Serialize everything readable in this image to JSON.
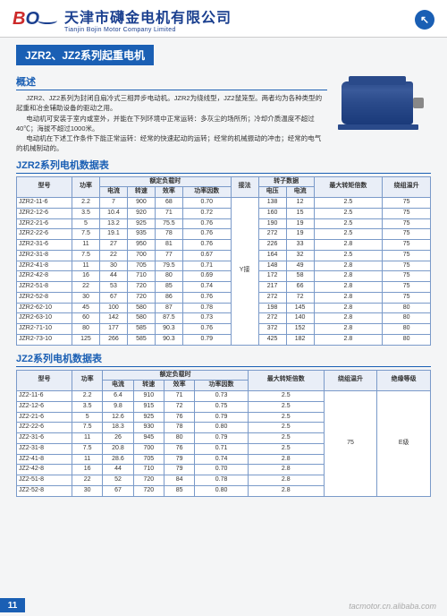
{
  "header": {
    "logo_text": "BO",
    "company_cn": "天津市礴金电机有限公司",
    "company_en": "Tianjin Bojin Motor Company Limited",
    "nav_glyph": "↖"
  },
  "title": "JZR2、JZ2系列起重电机",
  "overview": {
    "heading": "概述",
    "p1": "JZR2、JZ2系列为封闭自扇冷式三相异步电动机。JZR2为绕线型，JZ2鼠笼型。两者均为各种类型的起重和冶金辅助设备的驱动之用。",
    "p2": "电动机可安装于室内或室外，并能在下列环境中正常运转：多灰尘的场所所；冷却介质温度不超过40℃；海拔不超过1000米。",
    "p3": "电动机在下述工作条件下能正常运转：经常的快速起动的运转；经常的机械振动的冲击；经常的电气的机械制动的。"
  },
  "table1": {
    "heading": "JZR2系列电机数据表",
    "head_model": "型号",
    "head_power": "功率",
    "head_rated": "额定负载时",
    "head_rotor": "转子数据",
    "head_maxtorque": "最大转矩倍数",
    "head_temprise": "绕组温升",
    "sub_current": "电流",
    "sub_speed": "转速",
    "sub_eff": "效率",
    "sub_pf": "功率因数",
    "sub_conn": "接法",
    "sub_volt": "电压",
    "sub_curr2": "电流",
    "conn": "Y接",
    "rows": [
      [
        "JZR2-11-6",
        "2.2",
        "7",
        "900",
        "68",
        "0.70",
        "138",
        "12",
        "2.5",
        "75"
      ],
      [
        "JZR2-12-6",
        "3.5",
        "10.4",
        "920",
        "71",
        "0.72",
        "160",
        "15",
        "2.5",
        "75"
      ],
      [
        "JZR2-21-6",
        "5",
        "13.2",
        "925",
        "75.5",
        "0.76",
        "190",
        "19",
        "2.5",
        "75"
      ],
      [
        "JZR2-22-6",
        "7.5",
        "19.1",
        "935",
        "78",
        "0.76",
        "272",
        "19",
        "2.5",
        "75"
      ],
      [
        "JZR2-31-6",
        "11",
        "27",
        "950",
        "81",
        "0.76",
        "226",
        "33",
        "2.8",
        "75"
      ],
      [
        "JZR2-31-8",
        "7.5",
        "22",
        "700",
        "77",
        "0.67",
        "164",
        "32",
        "2.5",
        "75"
      ],
      [
        "JZR2-41-8",
        "11",
        "30",
        "705",
        "79.5",
        "0.71",
        "148",
        "49",
        "2.8",
        "75"
      ],
      [
        "JZR2-42-8",
        "16",
        "44",
        "710",
        "80",
        "0.69",
        "172",
        "58",
        "2.8",
        "75"
      ],
      [
        "JZR2-51-8",
        "22",
        "53",
        "720",
        "85",
        "0.74",
        "217",
        "66",
        "2.8",
        "75"
      ],
      [
        "JZR2-52-8",
        "30",
        "67",
        "720",
        "86",
        "0.76",
        "272",
        "72",
        "2.8",
        "75"
      ],
      [
        "JZR2-62-10",
        "45",
        "100",
        "580",
        "87",
        "0.78",
        "198",
        "145",
        "2.8",
        "80"
      ],
      [
        "JZR2-63-10",
        "60",
        "142",
        "580",
        "87.5",
        "0.73",
        "272",
        "140",
        "2.8",
        "80"
      ],
      [
        "JZR2-71-10",
        "80",
        "177",
        "585",
        "90.3",
        "0.76",
        "372",
        "152",
        "2.8",
        "80"
      ],
      [
        "JZR2-73-10",
        "125",
        "266",
        "585",
        "90.3",
        "0.79",
        "425",
        "182",
        "2.8",
        "80"
      ]
    ]
  },
  "table2": {
    "heading": "JZ2系列电机数据表",
    "head_model": "型号",
    "head_power": "功率",
    "head_rated": "额定负载时",
    "head_maxtorque": "最大转矩倍数",
    "head_temprise": "绕组温升",
    "head_insul": "绝缘等级",
    "sub_current": "电流",
    "sub_speed": "转速",
    "sub_eff": "效率",
    "sub_pf": "功率因数",
    "temprise": "75",
    "insul": "E级",
    "rows": [
      [
        "JZ2-11-6",
        "2.2",
        "6.4",
        "910",
        "71",
        "0.73",
        "2.5"
      ],
      [
        "JZ2-12-6",
        "3.5",
        "9.8",
        "915",
        "72",
        "0.75",
        "2.5"
      ],
      [
        "JZ2-21-6",
        "5",
        "12.6",
        "925",
        "76",
        "0.79",
        "2.5"
      ],
      [
        "JZ2-22-6",
        "7.5",
        "18.3",
        "930",
        "78",
        "0.80",
        "2.5"
      ],
      [
        "JZ2-31-6",
        "11",
        "26",
        "945",
        "80",
        "0.79",
        "2.5"
      ],
      [
        "JZ2-31-8",
        "7.5",
        "20.8",
        "700",
        "76",
        "0.71",
        "2.5"
      ],
      [
        "JZ2-41-8",
        "11",
        "28.6",
        "705",
        "79",
        "0.74",
        "2.8"
      ],
      [
        "JZ2-42-8",
        "16",
        "44",
        "710",
        "79",
        "0.70",
        "2.8"
      ],
      [
        "JZ2-51-8",
        "22",
        "52",
        "720",
        "84",
        "0.78",
        "2.8"
      ],
      [
        "JZ2-52-8",
        "30",
        "67",
        "720",
        "85",
        "0.80",
        "2.8"
      ]
    ]
  },
  "page_num": "11",
  "watermark": "tacmotor.cn.alibaba.com"
}
